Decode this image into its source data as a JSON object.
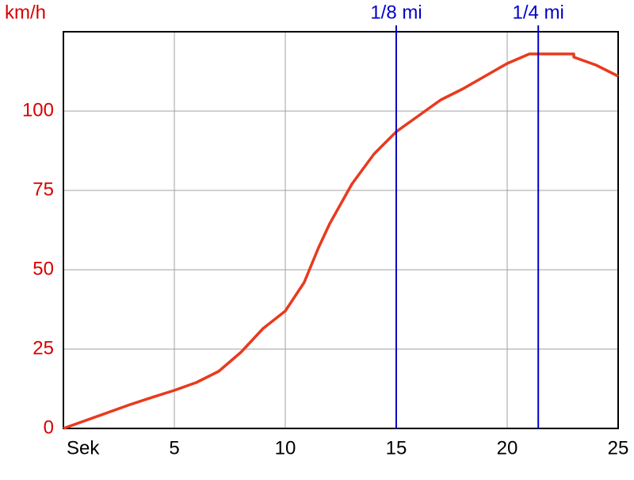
{
  "chart_data": {
    "type": "line",
    "y_label": "km/h",
    "x": [
      0,
      1,
      2,
      3,
      4,
      5,
      6,
      7,
      8,
      9,
      10,
      10.85,
      11.5,
      12,
      13,
      14,
      15,
      16,
      17,
      18,
      19,
      20,
      21,
      22,
      23,
      23,
      24,
      25
    ],
    "series": [
      {
        "name": "km/h",
        "color": "#e83a1e",
        "values": [
          0,
          2.5,
          5,
          7.5,
          9.8,
          12,
          14.5,
          18,
          24,
          31.5,
          37,
          46,
          57,
          64.5,
          77,
          86.5,
          93.5,
          98.5,
          103.5,
          107,
          111,
          115,
          118,
          118,
          118,
          117,
          114.5,
          111
        ]
      }
    ],
    "xlim": [
      0,
      25
    ],
    "ylim": [
      0,
      125
    ],
    "xticks": [
      {
        "value": 0,
        "label": "Sek"
      },
      5,
      10,
      15,
      20,
      25
    ],
    "yticks": [
      0,
      25,
      50,
      75,
      100
    ],
    "grid": true,
    "markers": [
      {
        "label": "1/8 mi",
        "x": 15,
        "color": "#0000c8"
      },
      {
        "label": "1/4 mi",
        "x": 21.4,
        "color": "#0000c8"
      }
    ]
  }
}
